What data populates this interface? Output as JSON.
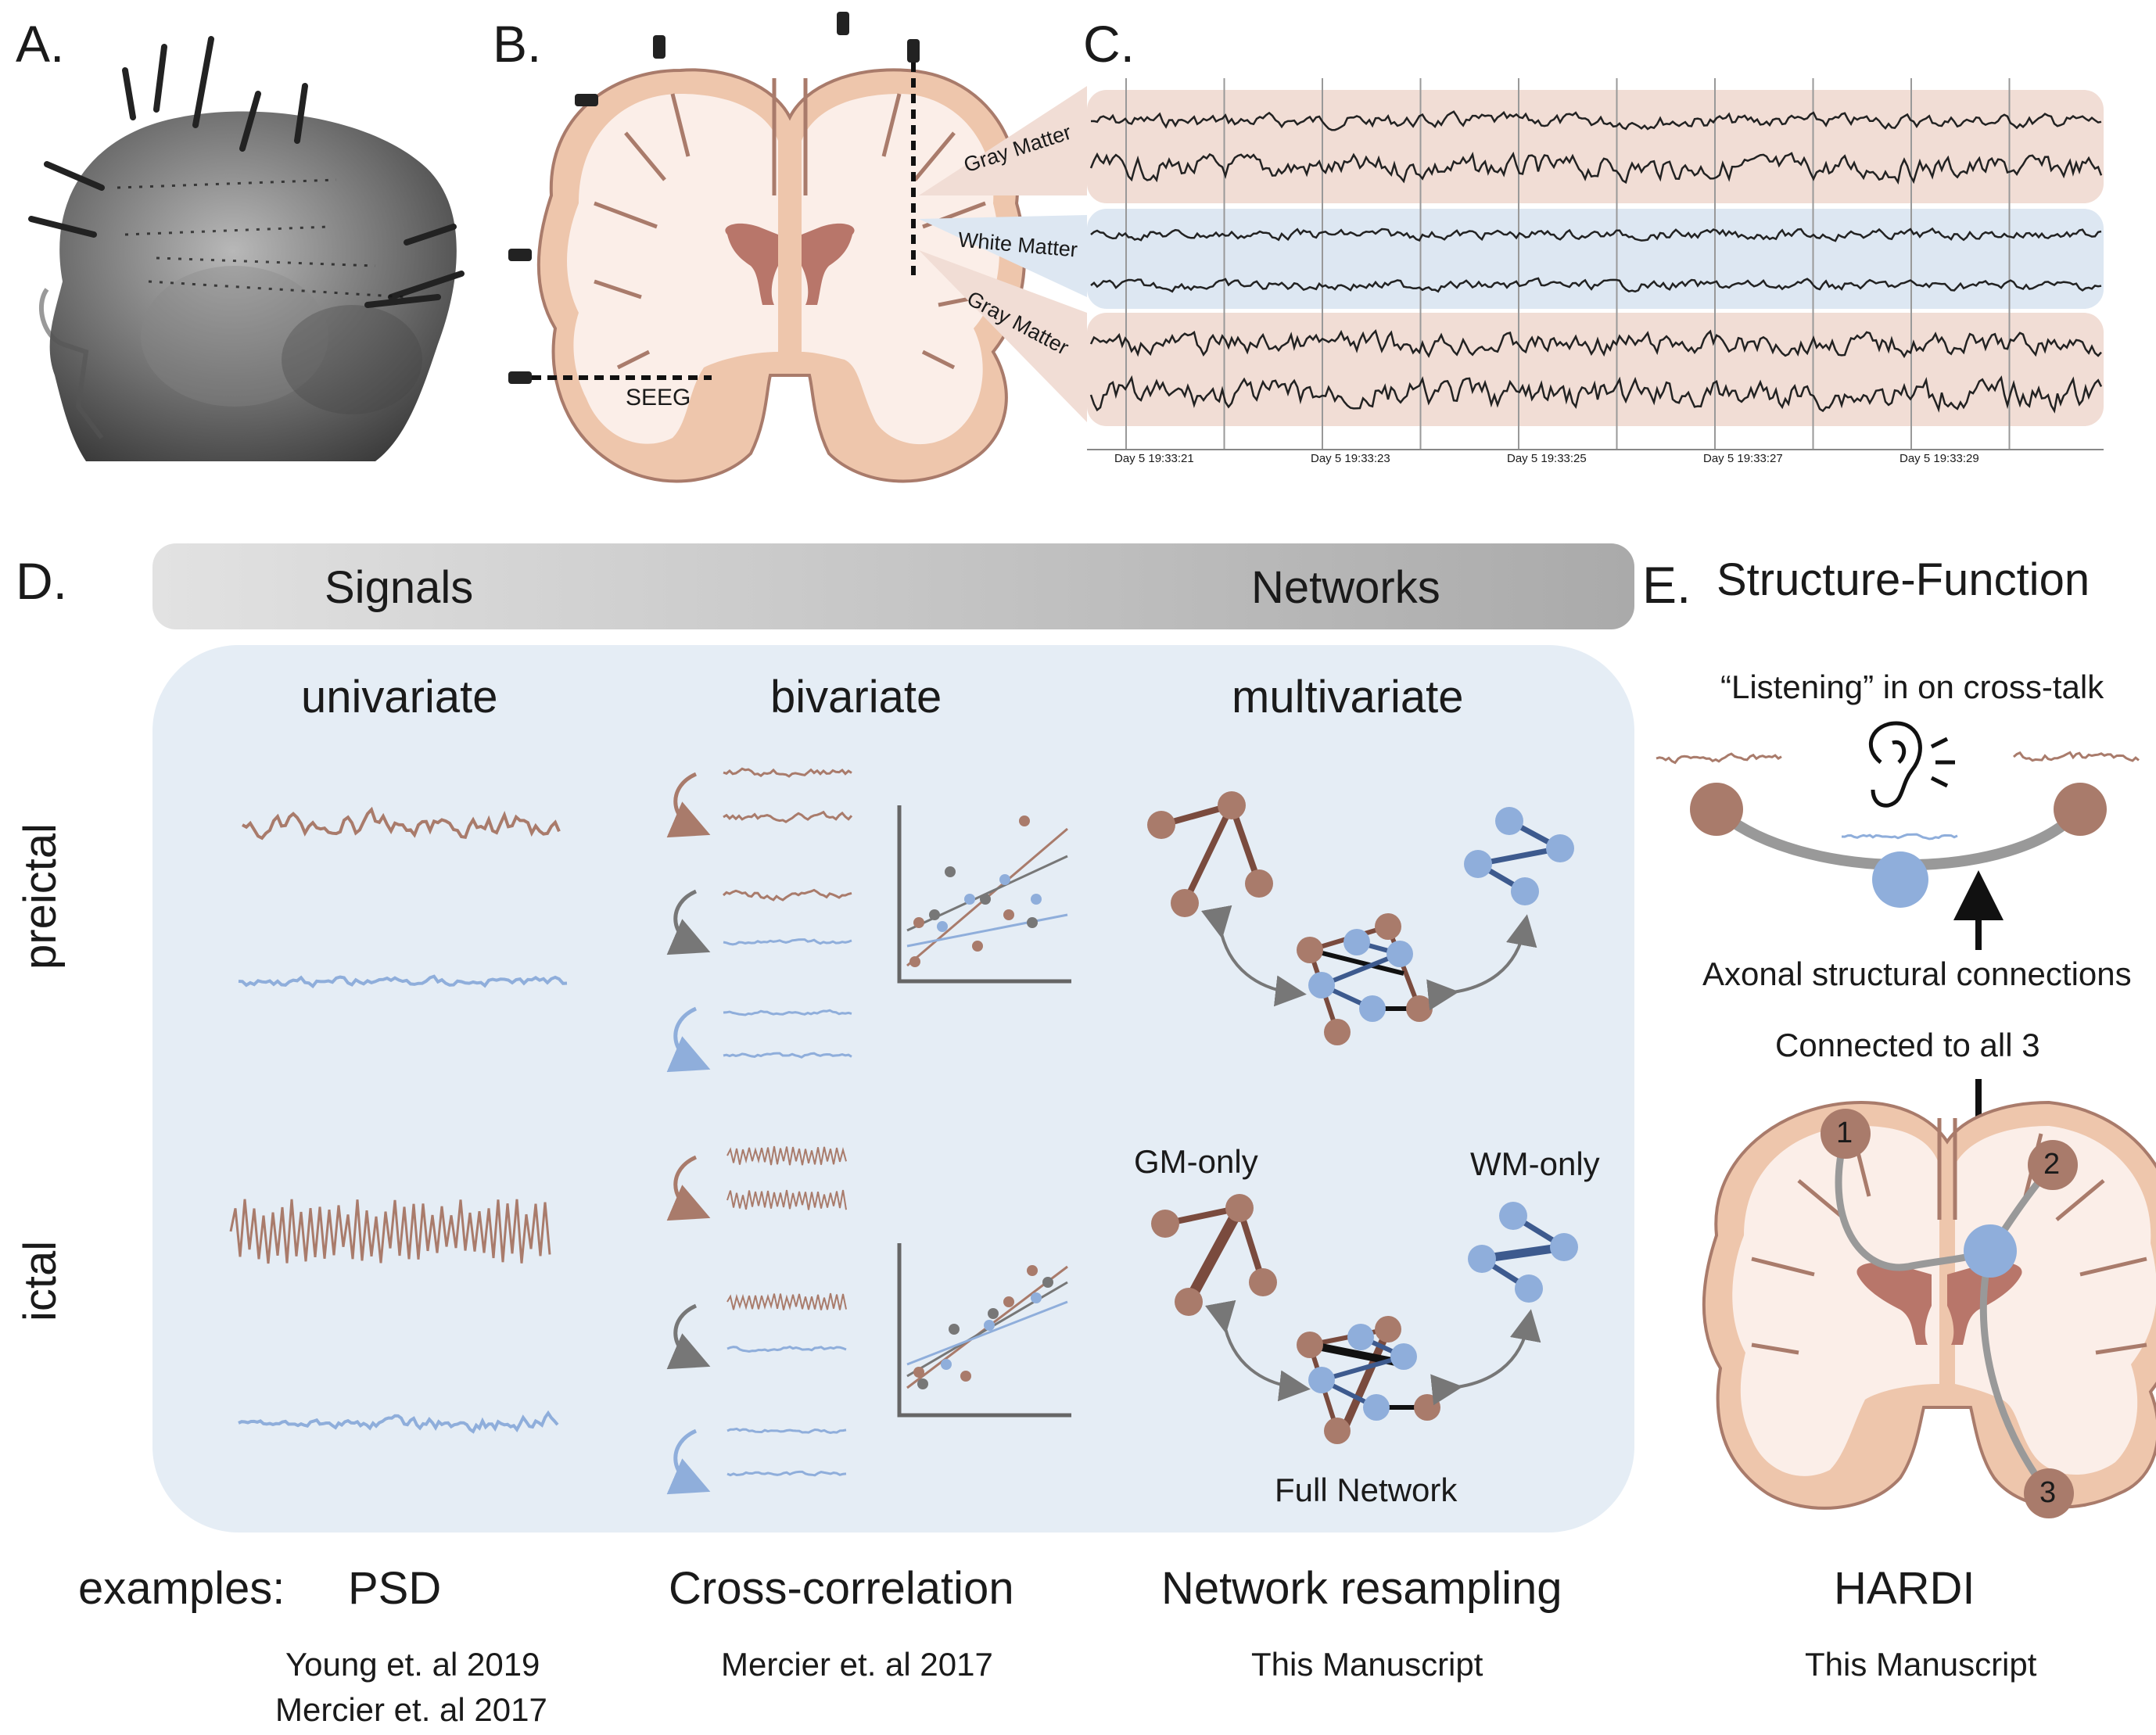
{
  "panels": {
    "a": {
      "label": "A."
    },
    "b": {
      "label": "B.",
      "seeg": "SEEG"
    },
    "c": {
      "label": "C.",
      "regions": [
        "Gray Matter",
        "White Matter",
        "Gray Matter"
      ],
      "time_ticks": [
        "Day 5 19:33:21",
        "Day 5 19:33:23",
        "Day 5 19:33:25",
        "Day 5 19:33:27",
        "Day 5 19:33:29"
      ]
    },
    "d": {
      "label": "D.",
      "bar_left": "Signals",
      "bar_right": "Networks",
      "cols": [
        "univariate",
        "bivariate",
        "multivariate"
      ],
      "rows": [
        "preictal",
        "ictal"
      ],
      "gm_only": "GM-only",
      "wm_only": "WM-only",
      "full_network": "Full Network"
    },
    "e": {
      "label": "E.",
      "title": "Structure-Function",
      "listening": "“Listening” in on cross-talk",
      "axonal": "Axonal structural connections",
      "connected": "Connected to all 3",
      "nodes": [
        "1",
        "2",
        "3"
      ]
    }
  },
  "examples": {
    "prefix": "examples:",
    "items": [
      {
        "method": "PSD",
        "refs": [
          "Young et. al 2019",
          "Mercier et. al 2017"
        ]
      },
      {
        "method": "Cross-correlation",
        "refs": [
          "Mercier et. al 2017"
        ]
      },
      {
        "method": "Network resampling",
        "refs": [
          "This Manuscript"
        ]
      },
      {
        "method": "HARDI",
        "refs": [
          "This Manuscript"
        ]
      }
    ]
  },
  "colors": {
    "gm": "#a97b6b",
    "wm": "#8faedb",
    "panel_bg": "#e5edf5",
    "gray_band": "#c8c8c8",
    "brain_fill": "#fbeee8",
    "cortex": "#eec6ac"
  }
}
